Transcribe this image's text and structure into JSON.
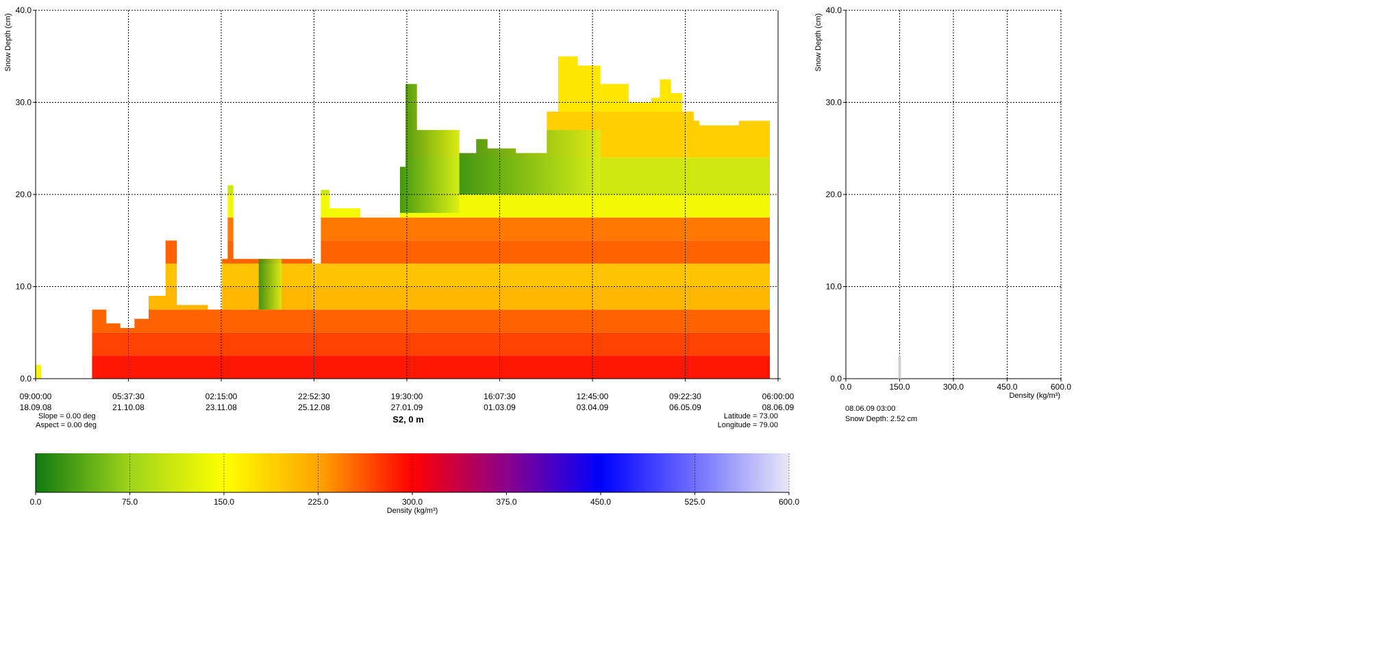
{
  "chart_data": [
    {
      "type": "heatmap",
      "subtype": "stratigraphy",
      "title": "S2, 0 m",
      "ylabel": "Snow Depth (cm)",
      "ylim": [
        0,
        40
      ],
      "yticks": [
        "0.0",
        "10.0",
        "20.0",
        "30.0",
        "40.0"
      ],
      "xlim": [
        "18.09.08 09:00",
        "08.06.09 06:00"
      ],
      "xticks": [
        {
          "time": "09:00:00",
          "date": "18.09.08"
        },
        {
          "time": "05:37:30",
          "date": "21.10.08"
        },
        {
          "time": "02:15:00",
          "date": "23.11.08"
        },
        {
          "time": "22:52:30",
          "date": "25.12.08"
        },
        {
          "time": "19:30:00",
          "date": "27.01.09"
        },
        {
          "time": "16:07:30",
          "date": "01.03.09"
        },
        {
          "time": "12:45:00",
          "date": "03.04.09"
        },
        {
          "time": "09:22:30",
          "date": "06.05.09"
        },
        {
          "time": "06:00:00",
          "date": "08.06.09"
        }
      ],
      "grid": true,
      "info_left": [
        "Slope = 0.00 deg",
        "Aspect = 0.00 deg"
      ],
      "info_right": [
        "Latitude = 73.00",
        "Longitude = 79.00"
      ],
      "snow_depth_series": {
        "x_days_note": "days since 18.09.08 09:00",
        "x": [
          0,
          17,
          20,
          25,
          30,
          35,
          40,
          46,
          50,
          61,
          66,
          68,
          70,
          79,
          87,
          98,
          101,
          104,
          115,
          120,
          129,
          131,
          135,
          150,
          156,
          160,
          170,
          181,
          185,
          192,
          200,
          210,
          218,
          221,
          225,
          229,
          233,
          235,
          249,
          260
        ],
        "y": [
          1.5,
          0,
          7.5,
          6,
          5.5,
          6.5,
          9,
          15,
          8,
          7.5,
          13,
          21,
          13,
          13,
          13,
          12.5,
          20.5,
          18.5,
          17.5,
          17.5,
          23,
          32,
          27,
          24.5,
          26,
          25,
          24.5,
          29,
          35,
          34,
          32,
          30,
          30.5,
          32.5,
          31,
          29,
          28,
          27.5,
          28,
          0
        ]
      }
    },
    {
      "type": "bar",
      "subtype": "density-profile",
      "ylabel": "Snow Depth (cm)",
      "xlabel": "Density (kg/m³)",
      "ylim": [
        0,
        40
      ],
      "xlim": [
        0,
        600
      ],
      "yticks": [
        "0.0",
        "10.0",
        "20.0",
        "30.0",
        "40.0"
      ],
      "xticks": [
        "0.0",
        "150.0",
        "300.0",
        "450.0",
        "600.0"
      ],
      "grid": true,
      "profile_layers": [
        {
          "depth_bottom": 0,
          "depth_top": 2.52,
          "density": 150
        }
      ],
      "info": [
        "08.06.09 03:00",
        "Snow Depth: 2.52 cm"
      ]
    },
    {
      "type": "colorbar",
      "xlabel": "Density (kg/m³)",
      "xlim": [
        0,
        600
      ],
      "xticks": [
        "0.0",
        "75.0",
        "150.0",
        "225.0",
        "300.0",
        "375.0",
        "450.0",
        "525.0",
        "600.0"
      ],
      "colors": [
        {
          "at": 0,
          "color": "#0f7a0f"
        },
        {
          "at": 75,
          "color": "#9fd41a"
        },
        {
          "at": 150,
          "color": "#ffff00"
        },
        {
          "at": 225,
          "color": "#ffa500"
        },
        {
          "at": 300,
          "color": "#ff0000"
        },
        {
          "at": 375,
          "color": "#8b008b"
        },
        {
          "at": 450,
          "color": "#0000ff"
        },
        {
          "at": 525,
          "color": "#6f6fff"
        },
        {
          "at": 600,
          "color": "#e8e8f8"
        }
      ]
    }
  ],
  "layers_note": "horizontal density bands in main plot",
  "main_layers": [
    {
      "y0": 0,
      "y1": 2.5,
      "density": 290
    },
    {
      "y0": 2.5,
      "y1": 5,
      "density": 270
    },
    {
      "y0": 5,
      "y1": 7.5,
      "density": 255
    },
    {
      "y0": 7.5,
      "y1": 10,
      "density": 210
    },
    {
      "y0": 10,
      "y1": 12.5,
      "density": 200
    },
    {
      "y0": 12.5,
      "y1": 15,
      "density": 255
    },
    {
      "y0": 15,
      "y1": 17.5,
      "density": 245
    },
    {
      "y0": 17.5,
      "y1": 20,
      "density": 140
    },
    {
      "y0": 20,
      "y1": 24,
      "density": 110
    },
    {
      "y0": 24,
      "y1": 29,
      "density": 190
    },
    {
      "y0": 29,
      "y1": 35,
      "density": 170
    }
  ]
}
